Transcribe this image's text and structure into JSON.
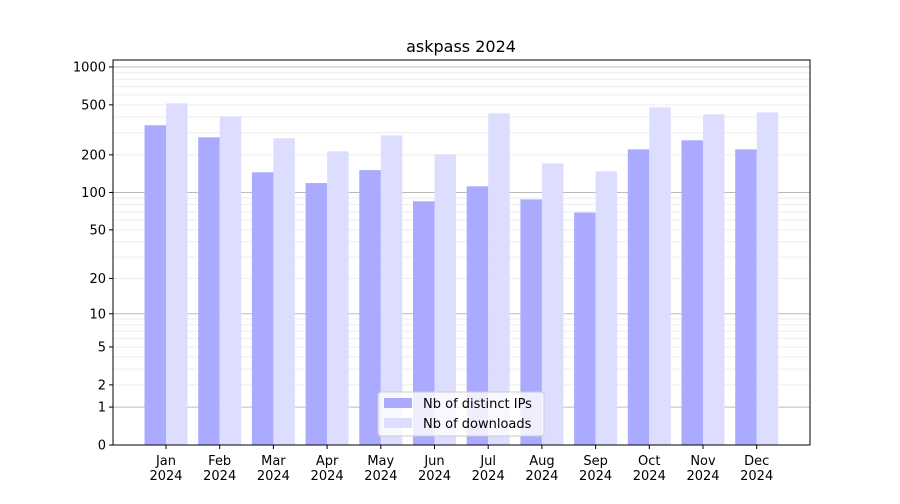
{
  "chart_data": {
    "type": "bar",
    "title": "askpass 2024",
    "xlabel": "",
    "ylabel": "",
    "yscale": "log(1+y)",
    "ylim": [
      0,
      1136
    ],
    "yticks": [
      0,
      1,
      2,
      5,
      10,
      20,
      50,
      100,
      200,
      500,
      1000
    ],
    "grid": true,
    "legend_position": "bottom-center",
    "categories": [
      "Jan\n2024",
      "Feb\n2024",
      "Mar\n2024",
      "Apr\n2024",
      "May\n2024",
      "Jun\n2024",
      "Jul\n2024",
      "Aug\n2024",
      "Sep\n2024",
      "Oct\n2024",
      "Nov\n2024",
      "Dec\n2024"
    ],
    "series": [
      {
        "name": "Nb of distinct IPs",
        "color": "#aaaaff",
        "values": [
          344,
          276,
          145,
          119,
          151,
          85,
          112,
          88,
          69,
          221,
          261,
          221
        ]
      },
      {
        "name": "Nb of downloads",
        "color": "#ddddff",
        "values": [
          514,
          405,
          271,
          213,
          286,
          202,
          428,
          171,
          148,
          478,
          420,
          436
        ]
      }
    ]
  }
}
